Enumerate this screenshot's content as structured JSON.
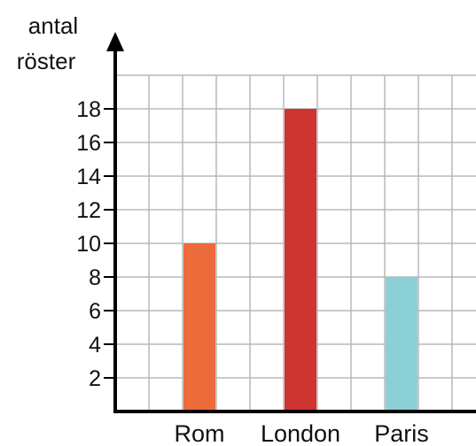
{
  "chart_data": {
    "type": "bar",
    "ylabel": [
      "antal",
      "röster"
    ],
    "xlabel": "",
    "categories": [
      "Rom",
      "London",
      "Paris"
    ],
    "values": [
      10,
      18,
      8
    ],
    "colors": [
      "#ED6A3B",
      "#CE3430",
      "#8BD0D6"
    ],
    "ylim": [
      0,
      20
    ],
    "y_ticks": [
      2,
      4,
      6,
      8,
      10,
      12,
      14,
      16,
      18
    ],
    "grid": true,
    "legend": "none"
  }
}
